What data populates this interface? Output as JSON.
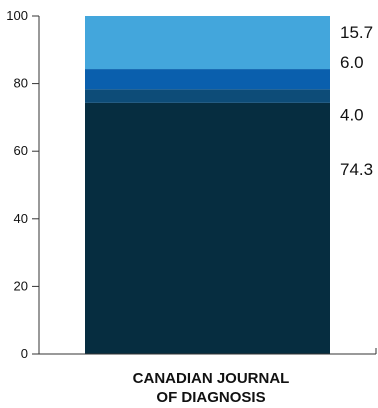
{
  "chart_data": {
    "type": "bar",
    "stacked": true,
    "categories": [
      "CANADIAN JOURNAL OF DIAGNOSIS"
    ],
    "category_label_lines": [
      "CANADIAN JOURNAL",
      "OF DIAGNOSIS"
    ],
    "segments": [
      {
        "value": 74.3,
        "label": "74.3",
        "color": "#062d40"
      },
      {
        "value": 4.0,
        "label": "4.0",
        "color": "#0d4c78"
      },
      {
        "value": 6.0,
        "label": "6.0",
        "color": "#0a5fad"
      },
      {
        "value": 15.7,
        "label": "15.7",
        "color": "#43a6dc"
      }
    ],
    "ylim": [
      0,
      100
    ],
    "yticks": [
      0,
      20,
      40,
      60,
      80,
      100
    ],
    "grid": false,
    "title": "",
    "xlabel": "",
    "ylabel": ""
  }
}
